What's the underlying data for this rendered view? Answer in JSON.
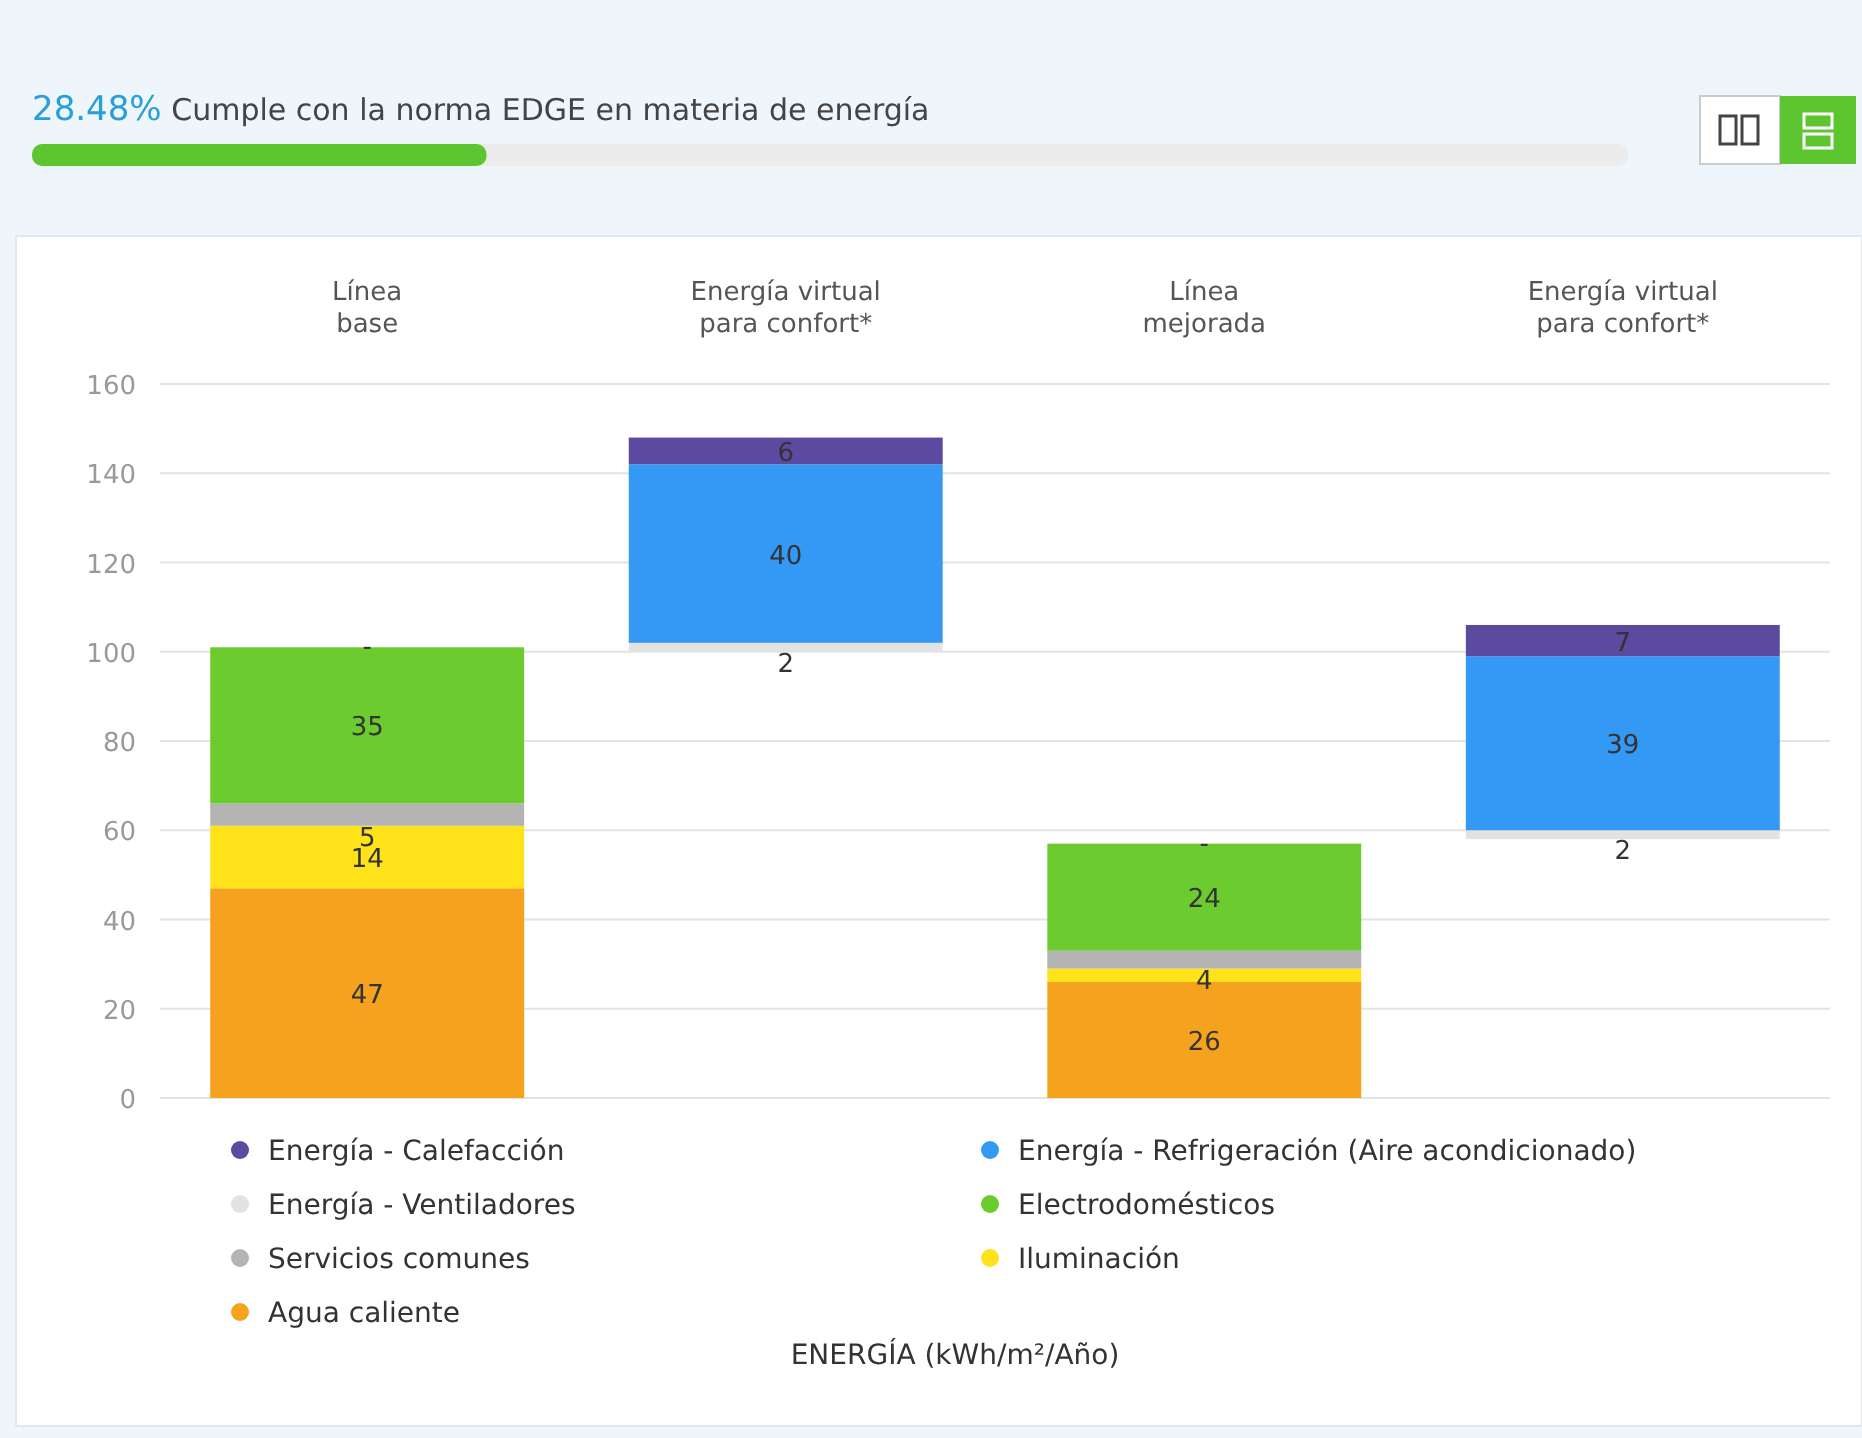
{
  "chart_data": {
    "type": "bar",
    "title": "28.48% Cumple con la norma EDGE en materia de energía",
    "annotations": [
      "ENERGÍA (kWh/m²/Año)",
      {
        "text": "-",
        "x": "Línea base",
        "y": 101
      },
      {
        "text": "-",
        "x": "Línea mejorada",
        "y": 57
      }
    ],
    "categories": [
      "Línea base",
      "Energía virtual para confort*",
      "Línea mejorada",
      "Energía virtual para confort*"
    ],
    "series": [
      {
        "name": "Agua caliente",
        "color": "#f5a31f",
        "values": [
          47,
          null,
          26,
          null
        ],
        "base": [
          0,
          null,
          0,
          null
        ],
        "value_labels": [
          "47",
          null,
          "26",
          null
        ]
      },
      {
        "name": "Iluminación",
        "color": "#ffe21a",
        "values": [
          14,
          null,
          3,
          null
        ],
        "base": [
          47,
          null,
          26,
          null
        ],
        "value_labels": [
          "14",
          null,
          null,
          null
        ]
      },
      {
        "name": "Servicios comunes",
        "color": "#b4b4b4",
        "values": [
          5,
          null,
          4,
          null
        ],
        "base": [
          61,
          null,
          29,
          null
        ],
        "value_labels": [
          "5",
          null,
          "4",
          null
        ]
      },
      {
        "name": "Electrodomésticos",
        "color": "#6ccb2e",
        "values": [
          35,
          null,
          24,
          null
        ],
        "base": [
          66,
          null,
          33,
          null
        ],
        "value_labels": [
          "35",
          null,
          "24",
          null
        ]
      },
      {
        "name": "Energía - Ventiladores",
        "color": "#e2e2e2",
        "values": [
          null,
          2,
          null,
          2
        ],
        "base": [
          null,
          100,
          null,
          58
        ],
        "value_labels": [
          null,
          "2",
          null,
          "2"
        ]
      },
      {
        "name": "Energía - Refrigeración (Aire acondicionado)",
        "color": "#3399f5",
        "values": [
          null,
          40,
          null,
          39
        ],
        "base": [
          null,
          102,
          null,
          60
        ],
        "value_labels": [
          null,
          "40",
          null,
          "39"
        ]
      },
      {
        "name": "Energía - Calefacción",
        "color": "#5c4aa0",
        "values": [
          null,
          6,
          null,
          7
        ],
        "base": [
          null,
          142,
          null,
          99
        ],
        "value_labels": [
          null,
          "6",
          null,
          "7"
        ]
      }
    ],
    "ylim": [
      0,
      160
    ],
    "yticks": [
      0,
      20,
      40,
      60,
      80,
      100,
      120,
      140,
      160
    ],
    "grid": "y",
    "legend": "bottom"
  }
}
